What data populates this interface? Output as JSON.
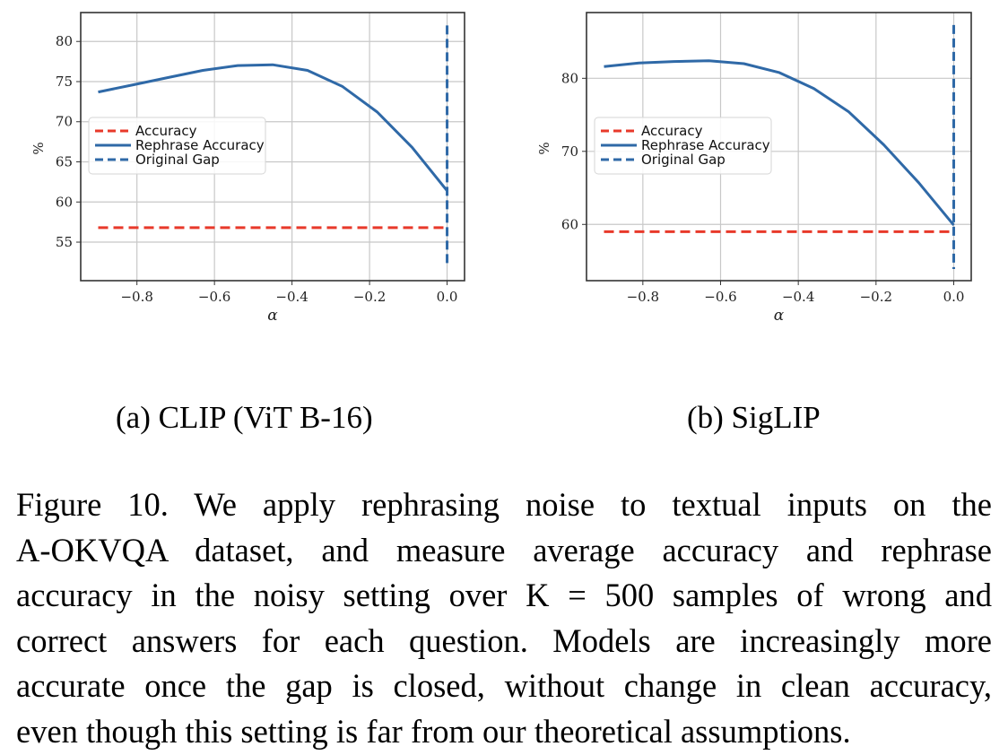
{
  "figure": {
    "subfigures": [
      {
        "label": "(a) CLIP (ViT B-16)"
      },
      {
        "label": "(b) SigLIP"
      }
    ],
    "caption_lines": [
      "Figure 10.  We apply rephrasing noise to textual inputs on the",
      "A-OKVQA dataset, and measure average accuracy and rephrase",
      "accuracy in the noisy setting over K = 500 samples of wrong and",
      "correct answers for each question. Models are increasingly more",
      "accurate once the gap is closed, without change in clean accuracy,",
      "even though this setting is far from our theoretical assumptions."
    ]
  },
  "colors": {
    "accuracy": "#e8392a",
    "rephrase": "#2f69a7",
    "gap": "#2f69a7",
    "grid": "#c8c8c8",
    "frame": "#333333"
  },
  "chart_data": [
    {
      "type": "line",
      "title": "(a) CLIP (ViT B-16)",
      "xlabel": "α",
      "ylabel": "%",
      "xlim": [
        -0.945,
        0.045
      ],
      "ylim": [
        50.2,
        83.6
      ],
      "xticks": [
        -0.8,
        -0.6,
        -0.4,
        -0.2,
        0.0
      ],
      "xtick_labels": [
        "−0.8",
        "−0.6",
        "−0.4",
        "−0.2",
        "0.0"
      ],
      "yticks": [
        55,
        60,
        65,
        70,
        75,
        80
      ],
      "ytick_labels": [
        "55",
        "60",
        "65",
        "70",
        "75",
        "80"
      ],
      "grid": true,
      "legend_position": "center left",
      "x": [
        -0.9,
        -0.81,
        -0.72,
        -0.63,
        -0.54,
        -0.45,
        -0.36,
        -0.27,
        -0.18,
        -0.09,
        0.0
      ],
      "series": [
        {
          "name": "Accuracy",
          "style": "dashed",
          "color": "#e8392a",
          "values": [
            56.8,
            56.8,
            56.8,
            56.8,
            56.8,
            56.8,
            56.8,
            56.8,
            56.8,
            56.8,
            56.8
          ]
        },
        {
          "name": "Rephrase Accuracy",
          "style": "solid",
          "color": "#2f69a7",
          "values": [
            73.7,
            74.6,
            75.5,
            76.4,
            77.0,
            77.1,
            76.4,
            74.4,
            71.2,
            66.8,
            61.4
          ]
        },
        {
          "name": "Original Gap",
          "style": "dashed-vertical",
          "color": "#2f69a7",
          "x": 0.0,
          "y_range": [
            52.0,
            82.0
          ]
        }
      ]
    },
    {
      "type": "line",
      "title": "(b) SigLIP",
      "xlabel": "α",
      "ylabel": "%",
      "xlim": [
        -0.945,
        0.045
      ],
      "ylim": [
        52.3,
        89.0
      ],
      "xticks": [
        -0.8,
        -0.6,
        -0.4,
        -0.2,
        0.0
      ],
      "xtick_labels": [
        "−0.8",
        "−0.6",
        "−0.4",
        "−0.2",
        "0.0"
      ],
      "yticks": [
        60,
        70,
        80
      ],
      "ytick_labels": [
        "60",
        "70",
        "80"
      ],
      "grid": true,
      "legend_position": "center left",
      "x": [
        -0.9,
        -0.81,
        -0.72,
        -0.63,
        -0.54,
        -0.45,
        -0.36,
        -0.27,
        -0.18,
        -0.09,
        0.0
      ],
      "series": [
        {
          "name": "Accuracy",
          "style": "dashed",
          "color": "#e8392a",
          "values": [
            59.0,
            59.0,
            59.0,
            59.0,
            59.0,
            59.0,
            59.0,
            59.0,
            59.0,
            59.0,
            59.0
          ]
        },
        {
          "name": "Rephrase Accuracy",
          "style": "solid",
          "color": "#2f69a7",
          "values": [
            81.6,
            82.1,
            82.3,
            82.4,
            82.0,
            80.8,
            78.6,
            75.4,
            70.9,
            65.7,
            59.9
          ]
        },
        {
          "name": "Original Gap",
          "style": "dashed-vertical",
          "color": "#2f69a7",
          "x": 0.0,
          "y_range": [
            53.9,
            87.3
          ]
        }
      ]
    }
  ]
}
